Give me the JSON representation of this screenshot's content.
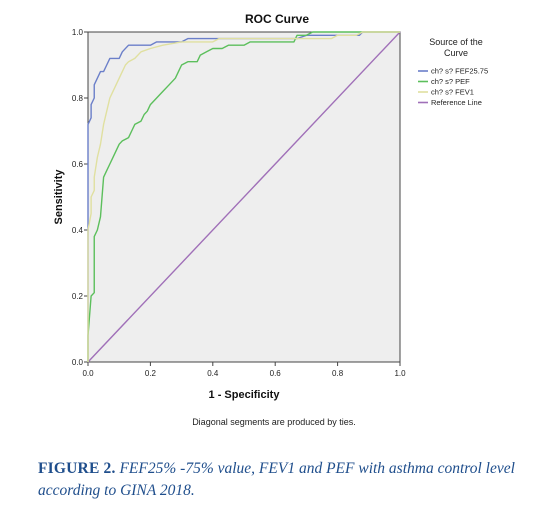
{
  "chart_data": {
    "type": "line",
    "title": "ROC Curve",
    "xlabel": "1 - Specificity",
    "ylabel": "Sensitivity",
    "xlim": [
      0,
      1
    ],
    "ylim": [
      0,
      1
    ],
    "grid": false,
    "plot_background": "#eeeeee",
    "x_ticks": [
      "0.0",
      "0.2",
      "0.4",
      "0.6",
      "0.8",
      "1.0"
    ],
    "y_ticks": [
      "0.0",
      "0.2",
      "0.4",
      "0.6",
      "0.8",
      "1.0"
    ],
    "legend": {
      "title_line1": "Source of the",
      "title_line2": "Curve",
      "placement": "right"
    },
    "series": [
      {
        "name": "ch? s? FEF25.75",
        "color": "#6b7fc9",
        "points": [
          [
            0,
            0
          ],
          [
            0,
            0.72
          ],
          [
            0.01,
            0.74
          ],
          [
            0.01,
            0.78
          ],
          [
            0.02,
            0.8
          ],
          [
            0.02,
            0.84
          ],
          [
            0.03,
            0.86
          ],
          [
            0.04,
            0.88
          ],
          [
            0.05,
            0.88
          ],
          [
            0.06,
            0.9
          ],
          [
            0.07,
            0.92
          ],
          [
            0.1,
            0.92
          ],
          [
            0.11,
            0.94
          ],
          [
            0.13,
            0.96
          ],
          [
            0.2,
            0.96
          ],
          [
            0.22,
            0.97
          ],
          [
            0.3,
            0.97
          ],
          [
            0.32,
            0.98
          ],
          [
            0.67,
            0.98
          ],
          [
            0.7,
            0.99
          ],
          [
            0.87,
            0.99
          ],
          [
            0.88,
            1
          ],
          [
            1,
            1
          ]
        ]
      },
      {
        "name": "ch? s? PEF",
        "color": "#5cbf5c",
        "points": [
          [
            0,
            0
          ],
          [
            0,
            0.08
          ],
          [
            0.01,
            0.2
          ],
          [
            0.02,
            0.21
          ],
          [
            0.02,
            0.38
          ],
          [
            0.03,
            0.4
          ],
          [
            0.04,
            0.44
          ],
          [
            0.05,
            0.56
          ],
          [
            0.06,
            0.58
          ],
          [
            0.07,
            0.6
          ],
          [
            0.08,
            0.62
          ],
          [
            0.09,
            0.64
          ],
          [
            0.1,
            0.66
          ],
          [
            0.11,
            0.67
          ],
          [
            0.13,
            0.68
          ],
          [
            0.14,
            0.7
          ],
          [
            0.15,
            0.72
          ],
          [
            0.17,
            0.73
          ],
          [
            0.18,
            0.75
          ],
          [
            0.19,
            0.76
          ],
          [
            0.2,
            0.78
          ],
          [
            0.22,
            0.8
          ],
          [
            0.24,
            0.82
          ],
          [
            0.26,
            0.84
          ],
          [
            0.28,
            0.86
          ],
          [
            0.29,
            0.88
          ],
          [
            0.3,
            0.9
          ],
          [
            0.32,
            0.91
          ],
          [
            0.35,
            0.91
          ],
          [
            0.36,
            0.93
          ],
          [
            0.38,
            0.94
          ],
          [
            0.4,
            0.95
          ],
          [
            0.43,
            0.95
          ],
          [
            0.45,
            0.96
          ],
          [
            0.5,
            0.96
          ],
          [
            0.52,
            0.97
          ],
          [
            0.66,
            0.97
          ],
          [
            0.67,
            0.99
          ],
          [
            0.7,
            0.99
          ],
          [
            0.72,
            1
          ],
          [
            1,
            1
          ]
        ]
      },
      {
        "name": "ch? s? FEV1",
        "color": "#e0e0a0",
        "points": [
          [
            0,
            0
          ],
          [
            0,
            0.4
          ],
          [
            0.01,
            0.45
          ],
          [
            0.01,
            0.5
          ],
          [
            0.02,
            0.52
          ],
          [
            0.02,
            0.56
          ],
          [
            0.03,
            0.62
          ],
          [
            0.04,
            0.66
          ],
          [
            0.05,
            0.72
          ],
          [
            0.06,
            0.76
          ],
          [
            0.07,
            0.8
          ],
          [
            0.08,
            0.82
          ],
          [
            0.09,
            0.84
          ],
          [
            0.1,
            0.86
          ],
          [
            0.11,
            0.88
          ],
          [
            0.12,
            0.9
          ],
          [
            0.13,
            0.91
          ],
          [
            0.15,
            0.92
          ],
          [
            0.17,
            0.94
          ],
          [
            0.2,
            0.95
          ],
          [
            0.24,
            0.96
          ],
          [
            0.3,
            0.97
          ],
          [
            0.4,
            0.97
          ],
          [
            0.42,
            0.98
          ],
          [
            0.78,
            0.98
          ],
          [
            0.8,
            0.99
          ],
          [
            0.86,
            0.99
          ],
          [
            0.88,
            1
          ],
          [
            1,
            1
          ]
        ]
      },
      {
        "name": "Reference Line",
        "color": "#a070b8",
        "points": [
          [
            0,
            0
          ],
          [
            1,
            1
          ]
        ]
      }
    ],
    "footnote": "Diagonal segments are produced by ties."
  },
  "caption": {
    "label": "FIGURE 2.",
    "text": "FEF25% -75% value, FEV1 and PEF with asthma control level according to GINA 2018."
  }
}
